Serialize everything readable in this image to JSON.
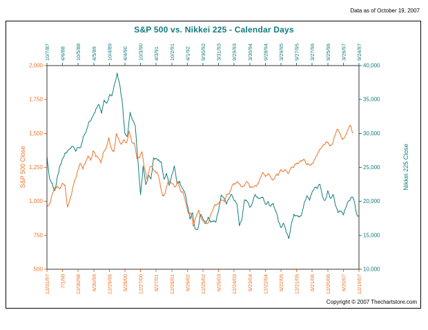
{
  "page": {
    "data_as_of": "Data as of October 19, 2007",
    "copyright": "Copyright © 2007 Thechartstore.com"
  },
  "chart_data": {
    "type": "line",
    "title": "S&P 500 vs. Nikkei 225 - Calendar Days",
    "title_color": "#117A7D",
    "grid": false,
    "legend": false,
    "left_axis": {
      "label": "S&P 500 Close",
      "color": "#EE7123",
      "range": [
        500,
        2000
      ],
      "tick_values": [
        500,
        750,
        1000,
        1250,
        1500,
        1750,
        2000
      ]
    },
    "right_axis": {
      "label": "Nikkei 225 Close",
      "color": "#117A7D",
      "range": [
        10000,
        40000
      ],
      "tick_values": [
        10000,
        15000,
        20000,
        25000,
        30000,
        35000,
        40000
      ]
    },
    "top_axis": {
      "color": "#117A7D",
      "labels": [
        "10/7/87",
        "4/6/88",
        "10/5/88",
        "4/5/89",
        "10/4/89",
        "4/4/90",
        "10/3/90",
        "4/3/91",
        "10/2/91",
        "4/1/92",
        "9/30/92",
        "3/31/93",
        "9/29/93",
        "3/30/94",
        "9/28/94",
        "3/29/95",
        "9/27/95",
        "3/27/96",
        "9/25/96",
        "3/26/97",
        "9/24/97"
      ]
    },
    "bottom_axis": {
      "color": "#EE7123",
      "labels": [
        "12/31/97",
        "7/1/98",
        "12/30/98",
        "6/30/99",
        "12/29/99",
        "6/28/00",
        "12/27/00",
        "6/27/01",
        "12/26/01",
        "6/26/02",
        "12/25/02",
        "6/25/03",
        "12/24/03",
        "6/23/04",
        "12/22/04",
        "6/22/05",
        "12/21/05",
        "6/21/06",
        "12/20/06",
        "6/20/07",
        "12/19/07"
      ],
      "note_last_data_point": "Data as of October 19, 2007"
    },
    "series": [
      {
        "id": "nikkei-225",
        "name": "Nikkei 225 Close (plotted on top date axis, right scale)",
        "axis": "right",
        "x_labels": "top",
        "color": "#117A7D",
        "x_span": [
          0,
          1.0
        ],
        "values": [
          26646,
          23328,
          22687,
          21564,
          23622,
          25243,
          26260,
          27158,
          27417,
          27769,
          28089,
          27366,
          27924,
          27983,
          29579,
          30159,
          31581,
          31986,
          32839,
          33713,
          34267,
          32949,
          34954,
          34431,
          35637,
          35549,
          37269,
          38916,
          37189,
          34592,
          29980,
          29585,
          33131,
          31940,
          31036,
          25978,
          20984,
          25194,
          22455,
          23849,
          23293,
          26409,
          26292,
          26111,
          25790,
          23291,
          24121,
          22336,
          23916,
          25222,
          22687,
          22984,
          22023,
          21339,
          19346,
          17391,
          18348,
          15952,
          15910,
          18061,
          17399,
          16767,
          17684,
          16925,
          17024,
          16953,
          18591,
          20919,
          20552,
          19590,
          20380,
          21027,
          20106,
          19703,
          16406,
          17417,
          20229,
          19997,
          19112,
          19725,
          20974,
          20644,
          20449,
          20629,
          19564,
          19990,
          19260,
          19723,
          18650,
          17053,
          16140,
          16806,
          15437,
          14517,
          16678,
          18117,
          17913,
          17655,
          18109,
          19868,
          20813,
          20125,
          21407,
          22041,
          21886,
          22531,
          20693,
          20167,
          21556,
          20467,
          21020,
          19361,
          18330,
          18557,
          18003,
          19151,
          20069,
          20605,
          20331,
          18229,
          17800
        ]
      },
      {
        "id": "sp-500",
        "name": "S&P 500 Close (plotted on bottom date axis, left scale)",
        "axis": "left",
        "x_labels": "bottom",
        "color": "#EE7123",
        "x_span": [
          0,
          0.98
        ],
        "values": [
          970,
          980,
          1049,
          1102,
          1112,
          1091,
          1134,
          1121,
          957,
          1017,
          1099,
          1164,
          1229,
          1280,
          1238,
          1286,
          1335,
          1302,
          1373,
          1329,
          1320,
          1283,
          1363,
          1389,
          1469,
          1394,
          1366,
          1499,
          1452,
          1421,
          1455,
          1431,
          1518,
          1436,
          1429,
          1315,
          1320,
          1366,
          1240,
          1160,
          1249,
          1256,
          1224,
          1211,
          1134,
          1041,
          1060,
          1139,
          1148,
          1130,
          1107,
          1147,
          1077,
          1067,
          990,
          912,
          916,
          815,
          886,
          936,
          880,
          856,
          841,
          848,
          917,
          964,
          975,
          990,
          1008,
          996,
          1051,
          1058,
          1112,
          1131,
          1145,
          1126,
          1107,
          1121,
          1141,
          1102,
          1104,
          1115,
          1130,
          1174,
          1212,
          1181,
          1204,
          1181,
          1157,
          1192,
          1191,
          1234,
          1220,
          1229,
          1207,
          1249,
          1248,
          1280,
          1281,
          1295,
          1311,
          1270,
          1270,
          1277,
          1304,
          1336,
          1378,
          1401,
          1418,
          1438,
          1407,
          1421,
          1482,
          1531,
          1503,
          1455,
          1474,
          1527,
          1562,
          1501
        ]
      }
    ]
  }
}
